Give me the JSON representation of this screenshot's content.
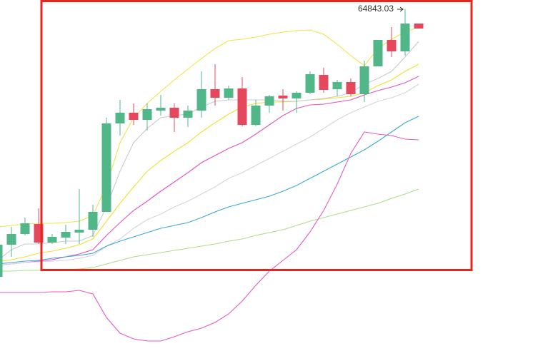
{
  "chart_data": {
    "type": "candlestick",
    "ylim": [
      40550,
      65500
    ],
    "up_color": "#52b788",
    "down_color": "#e5485d",
    "series": [
      {
        "open": [
          46100,
          48350,
          49100,
          49800,
          48500,
          48850,
          49200,
          49400,
          50650,
          56850,
          57600,
          57100,
          57750,
          57950,
          57250,
          57750,
          59250,
          58650,
          59300,
          56750,
          58100,
          58800,
          58600,
          59000,
          60250,
          59250,
          59750,
          58900,
          60850,
          62700,
          61900,
          63850
        ],
        "high": [
          48350,
          49600,
          50250,
          50900,
          49100,
          49750,
          52250,
          51150,
          57250,
          58500,
          58250,
          58250,
          58850,
          58250,
          58100,
          60500,
          61000,
          59500,
          60100,
          58500,
          58850,
          59250,
          59100,
          60500,
          60750,
          59900,
          60000,
          61250,
          62700,
          63600,
          64843.03,
          63850
        ],
        "low": [
          46000,
          47500,
          49000,
          48400,
          48400,
          48400,
          48400,
          48900,
          50650,
          56000,
          56750,
          56350,
          57400,
          56250,
          56600,
          57250,
          58100,
          58500,
          56650,
          56650,
          57600,
          57750,
          57600,
          58900,
          59000,
          58750,
          58750,
          58350,
          60850,
          61500,
          61600,
          63500
        ],
        "close": [
          48350,
          49100,
          49850,
          48500,
          48900,
          49250,
          49400,
          50650,
          56850,
          57600,
          57100,
          57850,
          57950,
          57250,
          57750,
          59250,
          58650,
          59300,
          56750,
          58100,
          58750,
          58600,
          59000,
          60300,
          59200,
          59750,
          58900,
          60850,
          62700,
          61900,
          63850,
          63500
        ]
      }
    ],
    "lines": [
      {
        "color": "#f3e24a",
        "values": [
          49600,
          49700,
          49800,
          49850,
          49850,
          49900,
          50000,
          50400,
          52500,
          55500,
          57250,
          58250,
          59100,
          59900,
          60650,
          61400,
          62100,
          62650,
          62750,
          62900,
          63100,
          63250,
          63350,
          63400,
          63100,
          62400,
          61600,
          60900,
          62100,
          62750,
          63250,
          63600
        ]
      },
      {
        "color": "#f0e030",
        "values": [
          47150,
          47300,
          47500,
          47750,
          47900,
          48100,
          48350,
          48750,
          50000,
          51250,
          52400,
          53500,
          54250,
          54900,
          55500,
          56250,
          56900,
          57500,
          58000,
          58250,
          58350,
          58350,
          58400,
          58500,
          58550,
          58650,
          58750,
          59000,
          59500,
          59900,
          60500,
          61000
        ]
      },
      {
        "color": "#c9c9d6",
        "values": [
          47250,
          48000,
          48400,
          48400,
          48500,
          48600,
          48600,
          49000,
          51000,
          53500,
          55500,
          56500,
          57250,
          57400,
          57500,
          58000,
          58400,
          58500,
          58500,
          58500,
          58500,
          58400,
          58400,
          58500,
          58600,
          58750,
          59000,
          59600,
          60000,
          60500,
          61500,
          62600
        ]
      },
      {
        "color": "#e052c4",
        "values": [
          46900,
          47000,
          47100,
          47200,
          47300,
          47500,
          47700,
          48000,
          49000,
          49900,
          50750,
          51400,
          52100,
          52750,
          53400,
          54100,
          54600,
          55100,
          55500,
          56100,
          56750,
          57400,
          57900,
          58150,
          58200,
          58350,
          58500,
          58850,
          59150,
          59400,
          59700,
          60150
        ]
      },
      {
        "color": "#d4d4e2",
        "values": [
          46900,
          47000,
          47100,
          47150,
          47200,
          47250,
          47400,
          47600,
          48250,
          48750,
          49500,
          50100,
          50500,
          51000,
          51400,
          51900,
          52400,
          53000,
          53400,
          53900,
          54400,
          54900,
          55400,
          55900,
          56500,
          57100,
          57600,
          58000,
          58400,
          58650,
          59000,
          59600
        ]
      },
      {
        "color": "#3aa8d8",
        "values": [
          47000,
          47100,
          47200,
          47250,
          47400,
          47500,
          47600,
          47750,
          48250,
          48600,
          48900,
          49200,
          49500,
          49700,
          49900,
          50250,
          50650,
          51000,
          51250,
          51500,
          51750,
          52100,
          52500,
          53000,
          53500,
          54000,
          54500,
          55000,
          55600,
          56250,
          56900,
          57350
        ]
      },
      {
        "color": "#acdc8e",
        "values": [
          46500,
          46500,
          46550,
          46550,
          46600,
          46600,
          46650,
          46750,
          47000,
          47250,
          47500,
          47650,
          47800,
          47950,
          48100,
          48250,
          48400,
          48600,
          48750,
          49000,
          49200,
          49400,
          49700,
          50000,
          50250,
          50500,
          50750,
          51000,
          51250,
          51600,
          51900,
          52250
        ]
      },
      {
        "color": "#e35bc9",
        "values": [
          45000,
          45000,
          45000,
          45000,
          45050,
          45050,
          45150,
          44900,
          43250,
          42150,
          41750,
          41600,
          41600,
          41900,
          42250,
          42500,
          42900,
          43500,
          44400,
          45500,
          46500,
          47250,
          48000,
          49250,
          50750,
          52600,
          54750,
          56250,
          56100,
          56000,
          55750,
          55700
        ]
      }
    ]
  }
}
